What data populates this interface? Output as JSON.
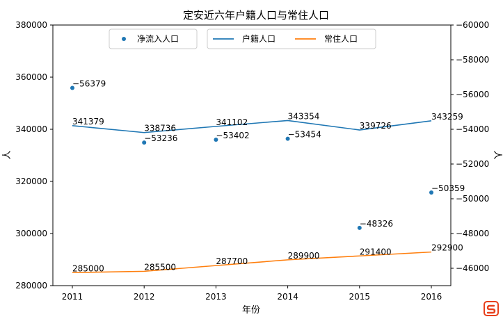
{
  "chart_data": {
    "type": "line",
    "title": "定安近六年户籍人口与常住人口",
    "xlabel": "年份",
    "ylabel_left": "人",
    "ylabel_right": "人",
    "x": [
      "2011",
      "2012",
      "2013",
      "2014",
      "2015",
      "2016"
    ],
    "ylim_left": [
      280000,
      380000
    ],
    "yticks_left": [
      "280000",
      "300000",
      "320000",
      "340000",
      "360000",
      "380000"
    ],
    "ylim_right": [
      -45000,
      -60000
    ],
    "right_axis_inverted": true,
    "yticks_right": [
      "−46000",
      "−48000",
      "−50000",
      "−52000",
      "−54000",
      "−56000",
      "−58000",
      "−60000"
    ],
    "grid": false,
    "legend_placement": "top-center",
    "series": [
      {
        "name": "户籍人口",
        "kind": "line",
        "axis": "left",
        "color": "#1f77b4",
        "values": [
          341379,
          338736,
          341102,
          343354,
          339726,
          343259
        ],
        "labels": [
          "341379",
          "338736",
          "341102",
          "343354",
          "339726",
          "343259"
        ]
      },
      {
        "name": "常住人口",
        "kind": "line",
        "axis": "left",
        "color": "#ff7f0e",
        "values": [
          285000,
          285500,
          287700,
          289900,
          291400,
          292900
        ],
        "labels": [
          "285000",
          "285500",
          "287700",
          "289900",
          "291400",
          "292900"
        ]
      },
      {
        "name": "净流入人口",
        "kind": "scatter",
        "axis": "right",
        "color": "#1f77b4",
        "values": [
          -56379,
          -53236,
          -53402,
          -53454,
          -48326,
          -50359
        ],
        "labels": [
          "−56379",
          "−53236",
          "−53402",
          "−53454",
          "−48326",
          "−50359"
        ]
      }
    ]
  },
  "watermark": {
    "name": "sogou-logo",
    "color": "#e8401c"
  }
}
